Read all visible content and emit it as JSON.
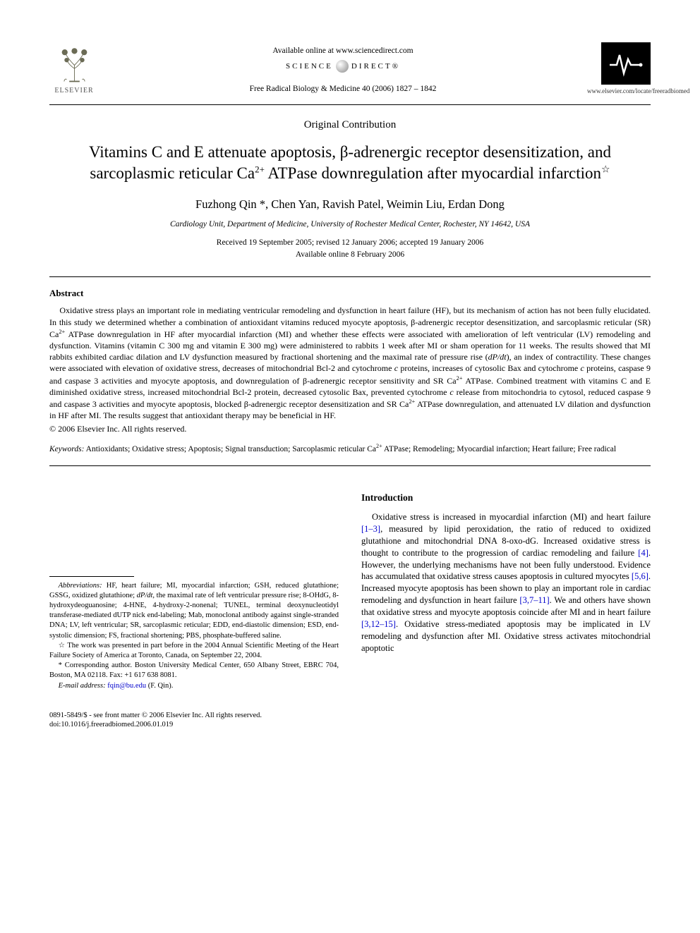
{
  "header": {
    "available_online": "Available online at www.sciencedirect.com",
    "sd_left": "SCIENCE",
    "sd_right": "DIRECT®",
    "journal_ref": "Free Radical Biology & Medicine 40 (2006) 1827 – 1842",
    "elsevier_label": "ELSEVIER",
    "journal_url": "www.elsevier.com/locate/freeradbiomed"
  },
  "article_type": "Original Contribution",
  "title_html": "Vitamins C and E attenuate apoptosis, β-adrenergic receptor desensitization, and sarcoplasmic reticular Ca<sup>2+</sup> ATPase downregulation after myocardial infarction",
  "authors": "Fuzhong Qin *, Chen Yan, Ravish Patel, Weimin Liu, Erdan Dong",
  "affiliation": "Cardiology Unit, Department of Medicine, University of Rochester Medical Center, Rochester, NY 14642, USA",
  "dates_line1": "Received 19 September 2005; revised 12 January 2006; accepted 19 January 2006",
  "dates_line2": "Available online 8 February 2006",
  "abstract": {
    "heading": "Abstract",
    "body_html": "Oxidative stress plays an important role in mediating ventricular remodeling and dysfunction in heart failure (HF), but its mechanism of action has not been fully elucidated. In this study we determined whether a combination of antioxidant vitamins reduced myocyte apoptosis, β-adrenergic receptor desensitization, and sarcoplasmic reticular (SR) Ca<sup>2+</sup> ATPase downregulation in HF after myocardial infarction (MI) and whether these effects were associated with amelioration of left ventricular (LV) remodeling and dysfunction. Vitamins (vitamin C 300 mg and vitamin E 300 mg) were administered to rabbits 1 week after MI or sham operation for 11 weeks. The results showed that MI rabbits exhibited cardiac dilation and LV dysfunction measured by fractional shortening and the maximal rate of pressure rise (<span class=\"dpdt\">dP/dt</span>), an index of contractility. These changes were associated with elevation of oxidative stress, decreases of mitochondrial Bcl-2 and cytochrome <i>c</i> proteins, increases of cytosolic Bax and cytochrome <i>c</i> proteins, caspase 9 and caspase 3 activities and myocyte apoptosis, and downregulation of β-adrenergic receptor sensitivity and SR Ca<sup>2+</sup> ATPase. Combined treatment with vitamins C and E diminished oxidative stress, increased mitochondrial Bcl-2 protein, decreased cytosolic Bax, prevented cytochrome <i>c</i> release from mitochondria to cytosol, reduced caspase 9 and caspase 3 activities and myocyte apoptosis, blocked β-adrenergic receptor desensitization and SR Ca<sup>2+</sup> ATPase downregulation, and attenuated LV dilation and dysfunction in HF after MI. The results suggest that antioxidant therapy may be beneficial in HF.",
    "copyright": "© 2006 Elsevier Inc. All rights reserved."
  },
  "keywords": {
    "label": "Keywords:",
    "list_html": "Antioxidants; Oxidative stress; Apoptosis; Signal transduction; Sarcoplasmic reticular Ca<sup>2+</sup> ATPase; Remodeling; Myocardial infarction; Heart failure; Free radical"
  },
  "footnotes": {
    "abbrev_html": "<i>Abbreviations:</i> HF, heart failure; MI, myocardial infarction; GSH, reduced glutathione; GSSG, oxidized glutathione; <i>dP/dt</i>, the maximal rate of left ventricular pressure rise; 8-OHdG, 8-hydroxydeoguanosine; 4-HNE, 4-hydroxy-2-nonenal; TUNEL, terminal deoxynucleotidyl transferase-mediated dUTP nick end-labeling; Mab, monoclonal antibody against single-stranded DNA; LV, left ventricular; SR, sarcoplasmic reticular; EDD, end-diastolic dimension; ESD, end-systolic dimension; FS, fractional shortening; PBS, phosphate-buffered saline.",
    "presented": "☆ The work was presented in part before in the 2004 Annual Scientific Meeting of the Heart Failure Society of America at Toronto, Canada, on September 22, 2004.",
    "corresponding": "* Corresponding author. Boston University Medical Center, 650 Albany Street, EBRC 704, Boston, MA 02118. Fax: +1 617 638 8081.",
    "email_label": "E-mail address:",
    "email": "fqin@bu.edu",
    "email_name": "(F. Qin)."
  },
  "introduction": {
    "heading": "Introduction",
    "body_html": "Oxidative stress is increased in myocardial infarction (MI) and heart failure <span class=\"ref-link\">[1–3]</span>, measured by lipid peroxidation, the ratio of reduced to oxidized glutathione and mitochondrial DNA 8-oxo-dG. Increased oxidative stress is thought to contribute to the progression of cardiac remodeling and failure <span class=\"ref-link\">[4]</span>. However, the underlying mechanisms have not been fully understood. Evidence has accumulated that oxidative stress causes apoptosis in cultured myocytes <span class=\"ref-link\">[5,6]</span>. Increased myocyte apoptosis has been shown to play an important role in cardiac remodeling and dysfunction in heart failure <span class=\"ref-link\">[3,7–11]</span>. We and others have shown that oxidative stress and myocyte apoptosis coincide after MI and in heart failure <span class=\"ref-link\">[3,12–15]</span>. Oxidative stress-mediated apoptosis may be implicated in LV remodeling and dysfunction after MI. Oxidative stress activates mitochondrial apoptotic"
  },
  "footer": {
    "line1": "0891-5849/$ - see front matter © 2006 Elsevier Inc. All rights reserved.",
    "line2": "doi:10.1016/j.freeradbiomed.2006.01.019"
  },
  "colors": {
    "text": "#000000",
    "link": "#0000cc",
    "background": "#ffffff"
  }
}
